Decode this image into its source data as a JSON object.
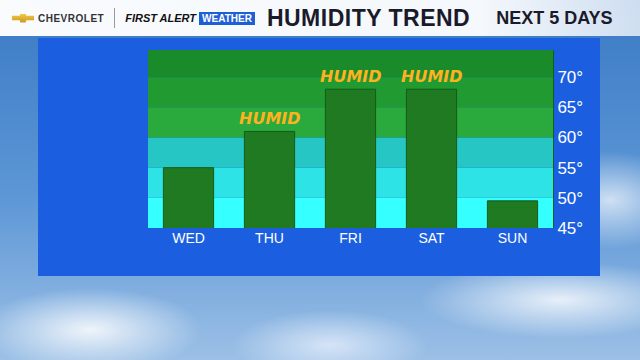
{
  "chart_data": {
    "type": "bar",
    "title": "HUMIDITY TREND",
    "subtitle": "NEXT 5 DAYS",
    "sponsor": "CHEVROLET",
    "brand": "FIRST ALERT",
    "brand_tag": "WEATHER",
    "categories": [
      "WED",
      "THU",
      "FRI",
      "SAT",
      "SUN"
    ],
    "values": [
      55,
      61,
      68,
      68,
      49.5
    ],
    "color": "#1f7a22",
    "ylim": [
      45,
      74.5
    ],
    "yticks": [
      {
        "value": 45,
        "label": "45°"
      },
      {
        "value": 50,
        "label": "50°"
      },
      {
        "value": 55,
        "label": "55°"
      },
      {
        "value": 60,
        "label": "60°"
      },
      {
        "value": 65,
        "label": "65°"
      },
      {
        "value": 70,
        "label": "70°"
      }
    ],
    "grid": false,
    "annotations": [
      {
        "category": "THU",
        "text": "HUMID"
      },
      {
        "category": "FRI",
        "text": "HUMID"
      },
      {
        "category": "SAT",
        "text": "HUMID"
      }
    ]
  }
}
